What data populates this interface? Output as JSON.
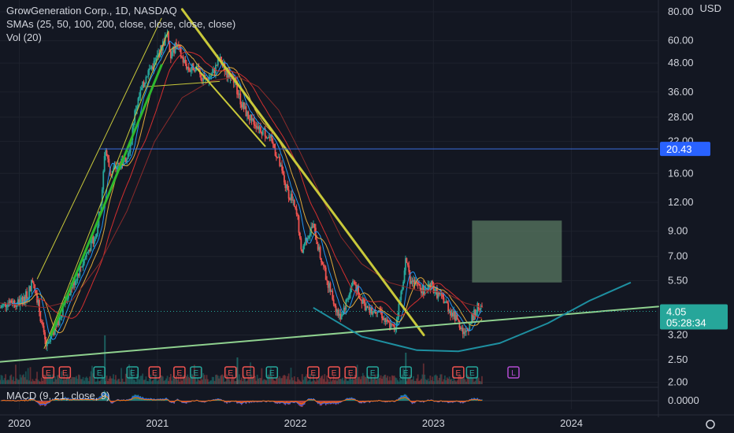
{
  "header": {
    "title": "GrowGeneration Corp., 1D, NASDAQ",
    "smas": "SMAs (25, 50, 100, 200, close, close, close, close)",
    "vol": "Vol (20)",
    "currency": "USD"
  },
  "macd": {
    "label": "MACD (9, 21, close, 9)"
  },
  "colors": {
    "background": "#131722",
    "up": "#26a69a",
    "down": "#ef5350",
    "grid": "#1e222d",
    "sma25": "#2196f3",
    "sma50": "#e0a83a",
    "sma100": "#d32f2f",
    "sma200": "#9c27b0",
    "trend_yellow": "#c8c83a",
    "trend_green": "#2eb82e",
    "support_green": "#8fd18f",
    "arc": "#1e8fa0",
    "resistance_blue": "#3b6fe0",
    "target_box": "#5a7a62"
  },
  "chart_data": {
    "type": "candlestick",
    "symbol": "GrowGeneration Corp.",
    "interval": "1D",
    "exchange": "NASDAQ",
    "x_axis": {
      "labels": [
        "2020",
        "2021",
        "2022",
        "2023",
        "2024"
      ]
    },
    "y_axis": {
      "scale": "log",
      "unit": "USD",
      "ticks": [
        "80.00",
        "60.00",
        "48.00",
        "36.00",
        "28.00",
        "22.00",
        "16.00",
        "12.00",
        "9.00",
        "7.00",
        "5.50",
        "3.20",
        "2.50",
        "2.00"
      ],
      "range": [
        1.9,
        90
      ]
    },
    "last_price": {
      "value": "4.05",
      "countdown": "05:28:34"
    },
    "resistance_level": {
      "value": "20.43"
    },
    "macd_axis_label": "0.0000",
    "price_path": [
      [
        2019.88,
        4.2
      ],
      [
        2019.95,
        4.5
      ],
      [
        2020.02,
        4.4
      ],
      [
        2020.08,
        4.8
      ],
      [
        2020.12,
        5.6
      ],
      [
        2020.15,
        4.6
      ],
      [
        2020.2,
        3.1
      ],
      [
        2020.22,
        2.8
      ],
      [
        2020.26,
        3.2
      ],
      [
        2020.3,
        3.6
      ],
      [
        2020.35,
        4.5
      ],
      [
        2020.42,
        5.5
      ],
      [
        2020.5,
        7.0
      ],
      [
        2020.58,
        9.0
      ],
      [
        2020.62,
        13
      ],
      [
        2020.64,
        21
      ],
      [
        2020.68,
        16
      ],
      [
        2020.72,
        17
      ],
      [
        2020.78,
        18
      ],
      [
        2020.82,
        21
      ],
      [
        2020.86,
        30
      ],
      [
        2020.9,
        36
      ],
      [
        2020.95,
        44
      ],
      [
        2021.0,
        48
      ],
      [
        2021.05,
        56
      ],
      [
        2021.09,
        64
      ],
      [
        2021.12,
        52
      ],
      [
        2021.16,
        58
      ],
      [
        2021.2,
        50
      ],
      [
        2021.25,
        45
      ],
      [
        2021.3,
        47
      ],
      [
        2021.36,
        40
      ],
      [
        2021.42,
        43
      ],
      [
        2021.47,
        50
      ],
      [
        2021.52,
        44
      ],
      [
        2021.58,
        40
      ],
      [
        2021.63,
        32
      ],
      [
        2021.68,
        28
      ],
      [
        2021.74,
        26
      ],
      [
        2021.8,
        24
      ],
      [
        2021.85,
        22
      ],
      [
        2021.9,
        18
      ],
      [
        2021.95,
        14
      ],
      [
        2022.0,
        12
      ],
      [
        2022.04,
        10
      ],
      [
        2022.06,
        7.2
      ],
      [
        2022.1,
        8.5
      ],
      [
        2022.15,
        9.5
      ],
      [
        2022.2,
        7.0
      ],
      [
        2022.25,
        5.5
      ],
      [
        2022.3,
        4.4
      ],
      [
        2022.34,
        3.8
      ],
      [
        2022.38,
        4.3
      ],
      [
        2022.44,
        5.5
      ],
      [
        2022.5,
        4.5
      ],
      [
        2022.56,
        4.0
      ],
      [
        2022.62,
        4.2
      ],
      [
        2022.68,
        3.6
      ],
      [
        2022.74,
        3.4
      ],
      [
        2022.78,
        4.6
      ],
      [
        2022.82,
        6.8
      ],
      [
        2022.85,
        5.6
      ],
      [
        2022.9,
        5.2
      ],
      [
        2022.95,
        5.0
      ],
      [
        2023.0,
        5.3
      ],
      [
        2023.05,
        4.8
      ],
      [
        2023.1,
        4.5
      ],
      [
        2023.15,
        4.0
      ],
      [
        2023.2,
        3.7
      ],
      [
        2023.25,
        3.2
      ],
      [
        2023.3,
        3.8
      ],
      [
        2023.34,
        4.2
      ],
      [
        2023.38,
        4.05
      ]
    ],
    "sma_path_slow": [
      [
        2019.88,
        4.4
      ],
      [
        2020.2,
        4.2
      ],
      [
        2020.4,
        4.5
      ],
      [
        2020.6,
        6.5
      ],
      [
        2020.8,
        11
      ],
      [
        2021.0,
        22
      ],
      [
        2021.2,
        34
      ],
      [
        2021.4,
        40
      ],
      [
        2021.6,
        42
      ],
      [
        2021.75,
        38
      ],
      [
        2021.9,
        30
      ],
      [
        2022.05,
        20
      ],
      [
        2022.2,
        13
      ],
      [
        2022.35,
        8.5
      ],
      [
        2022.5,
        6.5
      ],
      [
        2022.7,
        5.4
      ],
      [
        2022.9,
        5.0
      ],
      [
        2023.1,
        4.9
      ],
      [
        2023.25,
        4.4
      ],
      [
        2023.38,
        4.2
      ]
    ],
    "annotations": {
      "rising_channel": [
        [
          2020.2,
          2.8
        ],
        [
          2021.1,
          66
        ]
      ],
      "rising_channel_top": [
        [
          2020.15,
          5.6
        ],
        [
          2021.05,
          75
        ]
      ],
      "green_trend": [
        [
          2020.25,
          3.2
        ],
        [
          2021.05,
          47
        ]
      ],
      "falling_channel_top": [
        [
          2021.2,
          82
        ],
        [
          2022.95,
          3.2
        ]
      ],
      "falling_channel_bottom": [
        [
          2021.3,
          46
        ],
        [
          2021.8,
          21
        ]
      ],
      "support_line": [
        [
          2019.88,
          2.45
        ],
        [
          2024.65,
          4.25
        ]
      ],
      "resistance_line": [
        [
          2020.6,
          20.43
        ],
        [
          2024.55,
          20.43
        ]
      ],
      "flag_top": [
        [
          2020.95,
          38
        ],
        [
          2021.47,
          40
        ]
      ],
      "target_box": {
        "x": [
          2023.3,
          2023.95
        ],
        "y": [
          5.4,
          10.0
        ]
      },
      "arc": [
        [
          2022.15,
          4.2
        ],
        [
          2022.5,
          3.15
        ],
        [
          2022.9,
          2.75
        ],
        [
          2023.2,
          2.72
        ],
        [
          2023.5,
          2.95
        ],
        [
          2023.85,
          3.6
        ],
        [
          2024.15,
          4.5
        ],
        [
          2024.45,
          5.4
        ]
      ]
    },
    "earnings_markers": [
      {
        "x": 2020.23,
        "type": "E",
        "color": "down"
      },
      {
        "x": 2020.35,
        "type": "E",
        "color": "down"
      },
      {
        "x": 2020.6,
        "type": "E",
        "color": "up"
      },
      {
        "x": 2020.84,
        "type": "E",
        "color": "up"
      },
      {
        "x": 2021.0,
        "type": "E",
        "color": "down"
      },
      {
        "x": 2021.18,
        "type": "E",
        "color": "down"
      },
      {
        "x": 2021.3,
        "type": "E",
        "color": "up"
      },
      {
        "x": 2021.55,
        "type": "E",
        "color": "down"
      },
      {
        "x": 2021.68,
        "type": "E",
        "color": "down"
      },
      {
        "x": 2021.85,
        "type": "E",
        "color": "up"
      },
      {
        "x": 2022.15,
        "type": "E",
        "color": "down"
      },
      {
        "x": 2022.3,
        "type": "E",
        "color": "down"
      },
      {
        "x": 2022.42,
        "type": "E",
        "color": "down"
      },
      {
        "x": 2022.58,
        "type": "E",
        "color": "up"
      },
      {
        "x": 2022.82,
        "type": "E",
        "color": "up"
      },
      {
        "x": 2023.2,
        "type": "E",
        "color": "down"
      },
      {
        "x": 2023.3,
        "type": "E",
        "color": "up"
      },
      {
        "x": 2023.6,
        "type": "L",
        "color": "future"
      }
    ]
  }
}
